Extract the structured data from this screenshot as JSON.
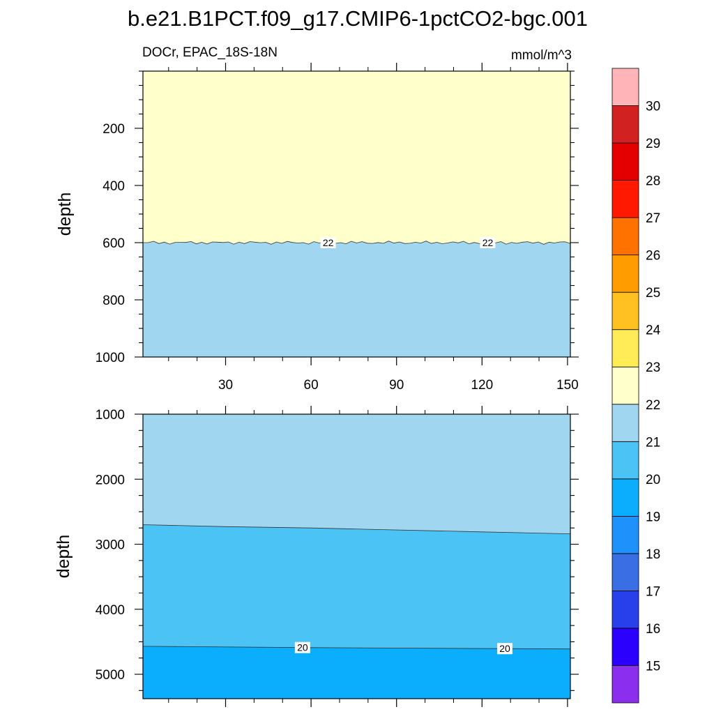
{
  "chart_data": [
    {
      "type": "contour",
      "title": "b.e21.B1PCT.f09_g17.CMIP6-1pctCO2-bgc.001",
      "left_string": "DOCr, EPAC_18S-18N",
      "right_string": "mmol/m^3",
      "ylabel": "depth",
      "xlabel": "",
      "x_ticks": [
        30,
        60,
        90,
        120,
        150
      ],
      "xlim": [
        1,
        151
      ],
      "y_ticks": [
        200,
        400,
        600,
        800,
        1000
      ],
      "ylim": [
        0,
        1000
      ],
      "y_reversed": true,
      "bands": [
        {
          "from_depth": 0,
          "to_depth": 600,
          "range": [
            22,
            23
          ],
          "color": "#ffffcc"
        },
        {
          "from_depth": 600,
          "to_depth": 1000,
          "range": [
            21,
            22
          ],
          "color": "#a0d6ef"
        }
      ],
      "contour_lines": [
        {
          "level": 22,
          "depth": 600,
          "labels": [
            "22",
            "22"
          ],
          "label_x": [
            66,
            122
          ]
        }
      ]
    },
    {
      "type": "contour",
      "ylabel": "depth",
      "x_ticks": [
        30,
        60,
        90,
        120,
        150
      ],
      "xlim": [
        1,
        151
      ],
      "y_ticks": [
        1000,
        2000,
        3000,
        4000,
        5000
      ],
      "ylim": [
        1000,
        5375
      ],
      "y_reversed": true,
      "bands": [
        {
          "range": [
            21,
            22
          ],
          "color": "#a0d6ef"
        },
        {
          "range": [
            20,
            21
          ],
          "color": "#4cc3f5"
        },
        {
          "range": [
            19,
            20
          ],
          "color": "#0aaefd"
        }
      ],
      "contour_lines": [
        {
          "level": 21,
          "x": [
            1,
            30,
            60,
            80,
            120,
            151
          ],
          "depth": [
            2700,
            2730,
            2750,
            2770,
            2810,
            2840
          ]
        },
        {
          "level": 20,
          "x": [
            1,
            60,
            100,
            151
          ],
          "depth": [
            4570,
            4590,
            4600,
            4610
          ],
          "labels": [
            "20",
            "20"
          ],
          "label_x": [
            57,
            128
          ]
        }
      ]
    }
  ],
  "colorbar": {
    "labels": [
      "15",
      "16",
      "17",
      "18",
      "19",
      "20",
      "21",
      "22",
      "23",
      "24",
      "25",
      "26",
      "27",
      "28",
      "29",
      "30"
    ],
    "colors": [
      "#8c2eee",
      "#2b00fd",
      "#2840ec",
      "#3a6ee4",
      "#1f91fb",
      "#0aaefd",
      "#4cc3f5",
      "#a0d6ef",
      "#ffffcc",
      "#ffec56",
      "#fec121",
      "#ff9d00",
      "#ff7200",
      "#ff1900",
      "#e50000",
      "#d12121",
      "#ffb5b7"
    ]
  }
}
